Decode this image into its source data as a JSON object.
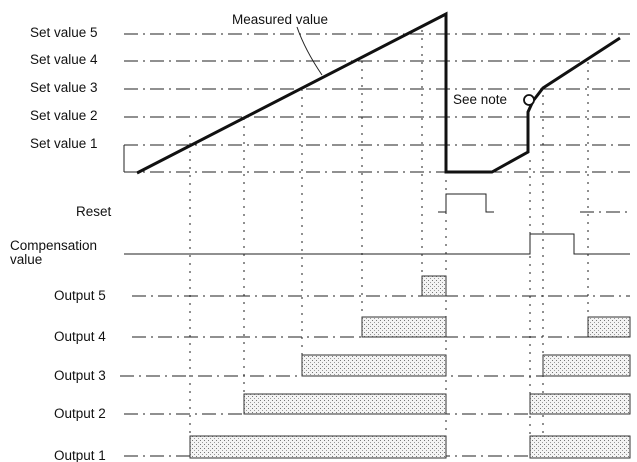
{
  "diagram": {
    "annotations": {
      "measured_value": "Measured value",
      "see_note": "See note"
    },
    "set_values": [
      "Set value 5",
      "Set value 4",
      "Set value 3",
      "Set value 2",
      "Set value 1"
    ],
    "signals": {
      "reset": "Reset",
      "compensation_line1": "Compensation",
      "compensation_line2": "value"
    },
    "outputs": [
      "Output 5",
      "Output 4",
      "Output 3",
      "Output 2",
      "Output 1"
    ]
  }
}
